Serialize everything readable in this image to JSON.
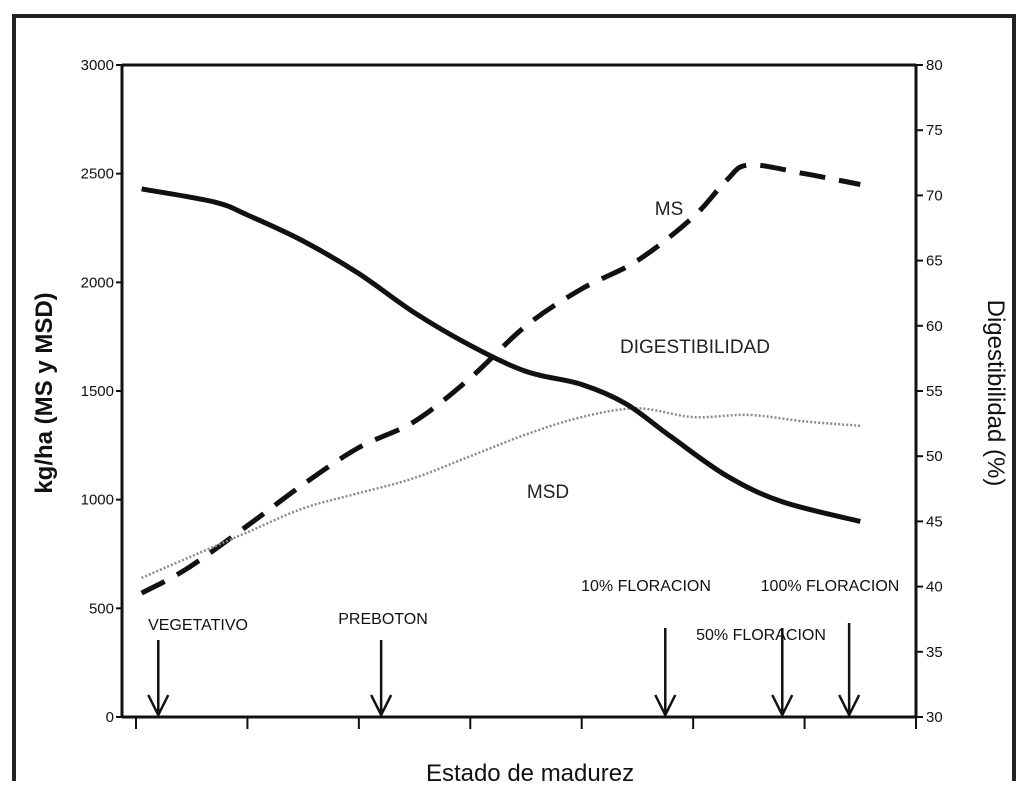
{
  "chart_data": {
    "type": "line",
    "xlabel": "Estado de madurez",
    "ylabel": "kg/ha (MS y MSD)",
    "y2label": "Digestibilidad (%)",
    "ylim": [
      0,
      3000
    ],
    "y2lim": [
      30,
      80
    ],
    "yticks": [
      "0",
      "500",
      "1000",
      "1500",
      "2000",
      "2500",
      "3000"
    ],
    "y2ticks": [
      "30",
      "35",
      "40",
      "45",
      "50",
      "55",
      "60",
      "65",
      "70",
      "75",
      "80"
    ],
    "x_range": [
      0,
      7
    ],
    "grid": false,
    "series": [
      {
        "name": "MS",
        "axis": "left",
        "style": "dashed",
        "color": "#111111",
        "points": [
          [
            0.05,
            570
          ],
          [
            0.45,
            680
          ],
          [
            1.0,
            880
          ],
          [
            1.5,
            1070
          ],
          [
            2.0,
            1240
          ],
          [
            2.5,
            1360
          ],
          [
            3.0,
            1560
          ],
          [
            3.5,
            1800
          ],
          [
            4.0,
            1970
          ],
          [
            4.5,
            2100
          ],
          [
            5.0,
            2300
          ],
          [
            5.3,
            2470
          ],
          [
            5.5,
            2540
          ],
          [
            6.0,
            2500
          ],
          [
            6.5,
            2450
          ]
        ]
      },
      {
        "name": "MSD",
        "axis": "left",
        "style": "dotted",
        "color": "#8a8a8a",
        "points": [
          [
            0.05,
            640
          ],
          [
            0.5,
            740
          ],
          [
            1.0,
            850
          ],
          [
            1.5,
            960
          ],
          [
            2.0,
            1030
          ],
          [
            2.5,
            1100
          ],
          [
            3.0,
            1200
          ],
          [
            3.5,
            1300
          ],
          [
            4.0,
            1380
          ],
          [
            4.5,
            1420
          ],
          [
            5.0,
            1380
          ],
          [
            5.5,
            1390
          ],
          [
            6.0,
            1360
          ],
          [
            6.5,
            1340
          ]
        ]
      },
      {
        "name": "DIGESTIBILIDAD",
        "axis": "right",
        "style": "solid",
        "color": "#111111",
        "points": [
          [
            0.05,
            70.5
          ],
          [
            0.7,
            69.5
          ],
          [
            1.0,
            68.5
          ],
          [
            1.5,
            66.5
          ],
          [
            2.0,
            64
          ],
          [
            2.5,
            61
          ],
          [
            3.0,
            58.5
          ],
          [
            3.5,
            56.5
          ],
          [
            4.0,
            55.5
          ],
          [
            4.4,
            54
          ],
          [
            4.8,
            51.5
          ],
          [
            5.3,
            48.5
          ],
          [
            5.8,
            46.5
          ],
          [
            6.5,
            45
          ]
        ]
      }
    ],
    "stages": [
      {
        "label": "VEGETATIVO",
        "x": 0.2
      },
      {
        "label": "PREBOTON",
        "x": 2.2
      },
      {
        "label": "10% FLORACION",
        "x": 4.75
      },
      {
        "label": "50% FLORACION",
        "x": 5.8
      },
      {
        "label": "100% FLORACION",
        "x": 6.4
      }
    ]
  }
}
